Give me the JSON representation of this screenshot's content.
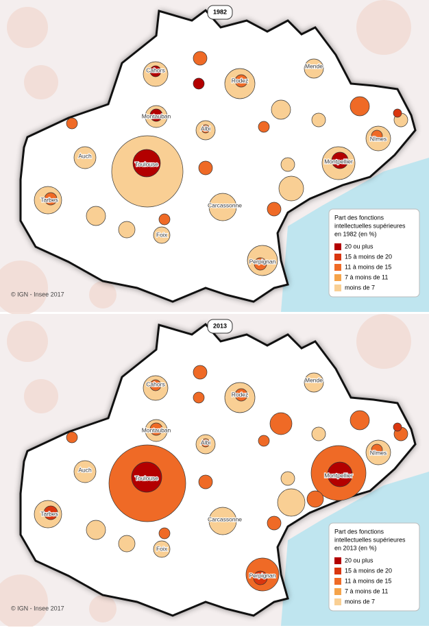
{
  "panels": [
    {
      "year": "1982",
      "cities": [
        "Cahors",
        "Rodez",
        "Mende",
        "Montauban",
        "Albi",
        "Nîmes",
        "Auch",
        "Toulouse",
        "Montpellier",
        "Tarbes",
        "Carcassonne",
        "Foix",
        "Perpignan"
      ],
      "legend": {
        "title": [
          "Part des fonctions",
          "intellectuelles supérieures",
          "en 1982 (en %)"
        ],
        "items": [
          {
            "label": "20 ou plus",
            "color": "#b30000"
          },
          {
            "label": "15 à moins de 20",
            "color": "#d9360f"
          },
          {
            "label": "11 à moins de 15",
            "color": "#ef6a26"
          },
          {
            "label": "7 à moins de 11",
            "color": "#f5a34a"
          },
          {
            "label": "moins de 7",
            "color": "#f9cf94"
          }
        ]
      },
      "credit": "© IGN - Insee 2017"
    },
    {
      "year": "2013",
      "cities": [
        "Cahors",
        "Rodez",
        "Mende",
        "Montauban",
        "Albi",
        "Nîmes",
        "Auch",
        "Toulouse",
        "Montpellier",
        "Tarbes",
        "Carcassonne",
        "Foix",
        "Perpignan"
      ],
      "legend": {
        "title": [
          "Part des fonctions",
          "intellectuelles supérieures",
          "en 2013 (en %)"
        ],
        "items": [
          {
            "label": "20 ou plus",
            "color": "#b30000"
          },
          {
            "label": "15 à moins de 20",
            "color": "#d9360f"
          },
          {
            "label": "11 à moins de 15",
            "color": "#ef6a26"
          },
          {
            "label": "7 à moins de 11",
            "color": "#f5a34a"
          },
          {
            "label": "moins de 7",
            "color": "#f9cf94"
          }
        ]
      },
      "credit": "© IGN - Insee 2017"
    }
  ]
}
